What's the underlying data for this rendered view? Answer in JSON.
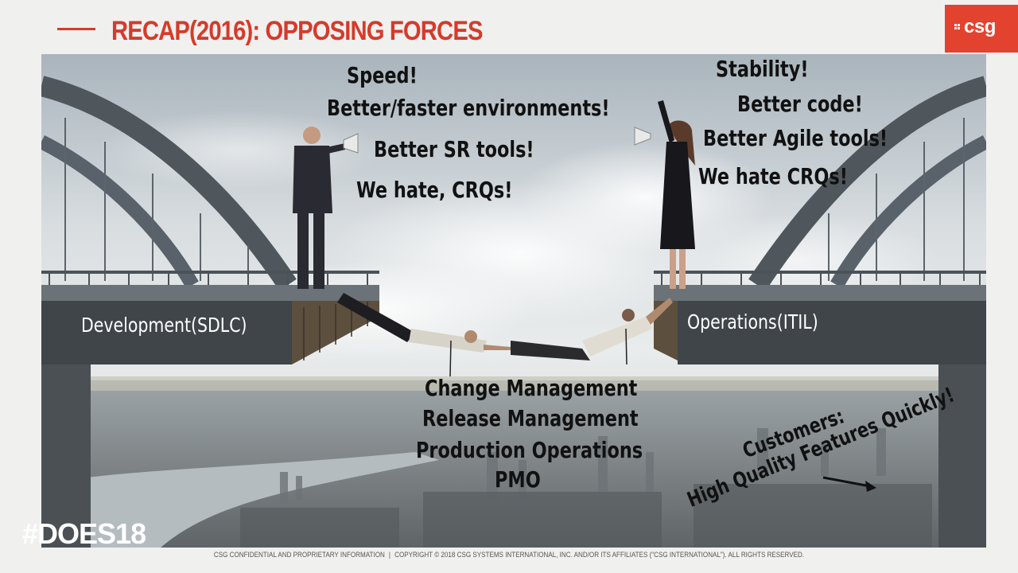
{
  "slide": {
    "title": "RECAP(2016): OPPOSING FORCES",
    "logo_text": "csg",
    "hashtag": "#DOES18",
    "footer": {
      "left": "CSG CONFIDENTIAL AND PROPRIETARY INFORMATION",
      "separator": "|",
      "right": "COPYRIGHT © 2018 CSG SYSTEMS INTERNATIONAL, INC. AND/OR ITS AFFILIATES (\"CSG INTERNATIONAL\"). ALL RIGHTS RESERVED."
    }
  },
  "dev_shouts": [
    "Speed!",
    "Better/faster environments!",
    "Better SR tools!",
    "We hate, CRQs!"
  ],
  "ops_shouts": [
    "Stability!",
    "Better code!",
    "Better Agile tools!",
    "We hate CRQs!"
  ],
  "bridge_labels": {
    "left": "Development(SDLC)",
    "right": "Operations(ITIL)"
  },
  "middle_list": [
    "Change Management",
    "Release Management",
    "Production Operations",
    "PMO"
  ],
  "customers": {
    "line1": "Customers:",
    "line2": "High Quality Features Quickly!"
  },
  "colors": {
    "accent": "#d63a2a",
    "logo_bg": "#e3422f"
  }
}
